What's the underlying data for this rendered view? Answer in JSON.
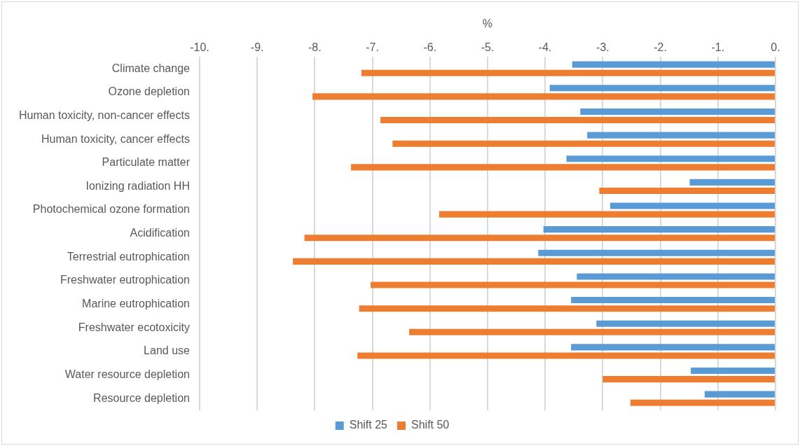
{
  "chart_data": {
    "type": "bar",
    "orientation": "horizontal",
    "xlabel": "%",
    "categories": [
      "Climate change",
      "Ozone depletion",
      "Human toxicity, non-cancer effects",
      "Human toxicity, cancer effects",
      "Particulate matter",
      "Ionizing radiation HH",
      "Photochemical ozone formation",
      "Acidification",
      "Terrestrial eutrophication",
      "Freshwater eutrophication",
      "Marine eutrophication",
      "Freshwater ecotoxicity",
      "Land use",
      "Water resource depletion",
      "Resource depletion"
    ],
    "series": [
      {
        "name": "Shift 25",
        "color": "#5b9bd5",
        "values": [
          -3.53,
          -3.92,
          -3.39,
          -3.27,
          -3.63,
          -1.49,
          -2.87,
          -4.03,
          -4.12,
          -3.45,
          -3.55,
          -3.11,
          -3.55,
          -1.47,
          -1.23
        ]
      },
      {
        "name": "Shift 50",
        "color": "#ed7d31",
        "values": [
          -7.19,
          -8.04,
          -6.86,
          -6.65,
          -7.37,
          -3.06,
          -5.84,
          -8.18,
          -8.38,
          -7.03,
          -7.23,
          -6.36,
          -7.26,
          -3.0,
          -2.52
        ]
      }
    ],
    "xlim": [
      -10,
      0
    ],
    "xticks": [
      {
        "value": -10,
        "label": "-10."
      },
      {
        "value": -9,
        "label": "-9."
      },
      {
        "value": -8,
        "label": "-8."
      },
      {
        "value": -7,
        "label": "-7."
      },
      {
        "value": -6,
        "label": "-6."
      },
      {
        "value": -5,
        "label": "-5."
      },
      {
        "value": -4,
        "label": "-4."
      },
      {
        "value": -3,
        "label": "-3."
      },
      {
        "value": -2,
        "label": "-2."
      },
      {
        "value": -1,
        "label": "-1."
      },
      {
        "value": 0,
        "label": "0."
      }
    ],
    "grid": "x",
    "legend": "bottom"
  }
}
